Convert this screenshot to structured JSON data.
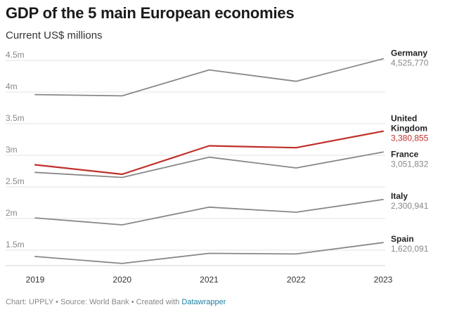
{
  "chart_data": {
    "type": "line",
    "title": "GDP of the 5 main European economies",
    "subtitle": "Current US$ millions",
    "x": [
      "2019",
      "2020",
      "2021",
      "2022",
      "2023"
    ],
    "ylim": [
      1250000,
      4700000
    ],
    "yticks": [
      {
        "value": 1500000,
        "label": "1.5m"
      },
      {
        "value": 2000000,
        "label": "2m"
      },
      {
        "value": 2500000,
        "label": "2.5m"
      },
      {
        "value": 3000000,
        "label": "3m"
      },
      {
        "value": 3500000,
        "label": "3.5m"
      },
      {
        "value": 4000000,
        "label": "4m"
      },
      {
        "value": 4500000,
        "label": "4.5m"
      }
    ],
    "grid": true,
    "series": [
      {
        "name": "Germany",
        "label_lines": [
          "Germany"
        ],
        "value_label": "4,525,770",
        "color": "#888888",
        "highlight": false,
        "values": [
          3960000,
          3940000,
          4350000,
          4170000,
          4525770
        ]
      },
      {
        "name": "United Kingdom",
        "label_lines": [
          "United",
          "Kingdom"
        ],
        "value_label": "3,380,855",
        "color": "#c0302b",
        "highlight": true,
        "values": [
          2850000,
          2700000,
          3150000,
          3120000,
          3380855
        ]
      },
      {
        "name": "France",
        "label_lines": [
          "France"
        ],
        "value_label": "3,051,832",
        "color": "#888888",
        "highlight": false,
        "values": [
          2730000,
          2650000,
          2970000,
          2800000,
          3051832
        ]
      },
      {
        "name": "Italy",
        "label_lines": [
          "Italy"
        ],
        "value_label": "2,300,941",
        "color": "#888888",
        "highlight": false,
        "values": [
          2010000,
          1900000,
          2180000,
          2100000,
          2300941
        ]
      },
      {
        "name": "Spain",
        "label_lines": [
          "Spain"
        ],
        "value_label": "1,620,091",
        "color": "#888888",
        "highlight": false,
        "values": [
          1400000,
          1290000,
          1450000,
          1440000,
          1620091
        ]
      }
    ]
  },
  "footer": {
    "text": "Chart: UPPLY • Source: World Bank • Created with ",
    "link": "Datawrapper"
  }
}
